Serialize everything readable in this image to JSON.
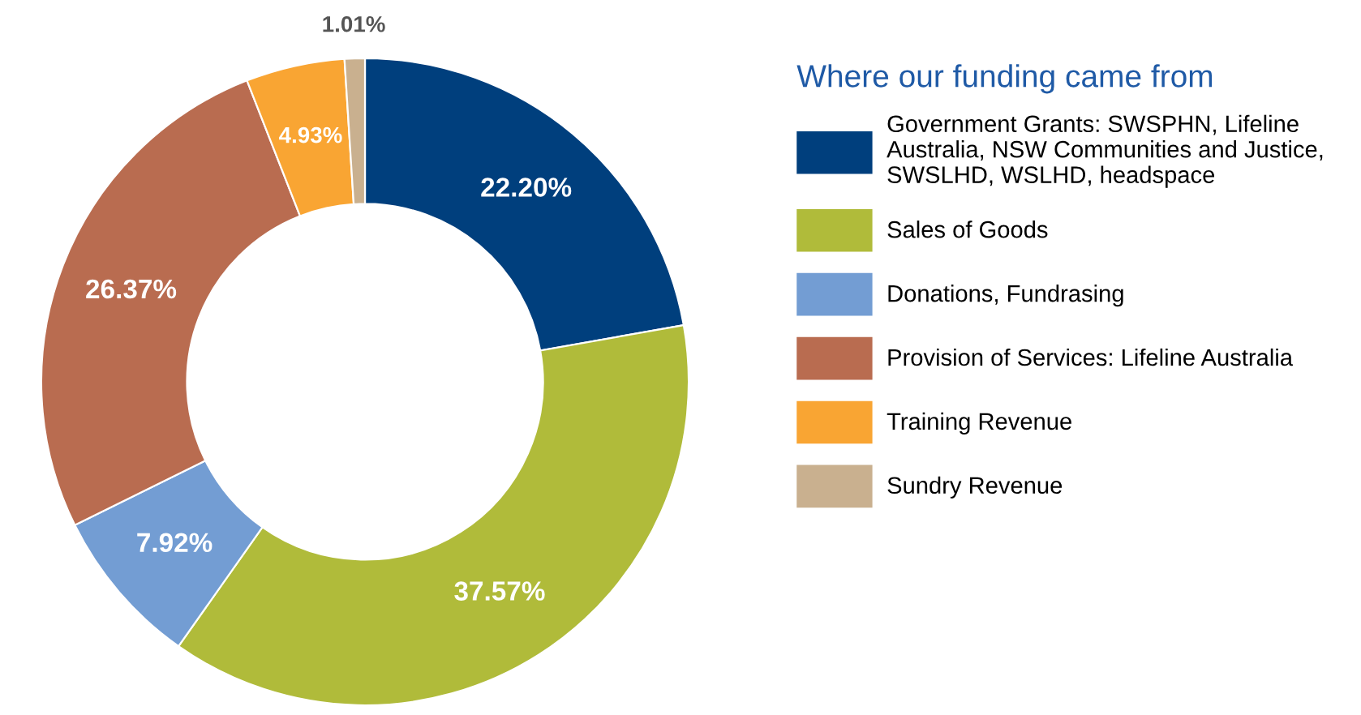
{
  "chart_data": {
    "type": "donut",
    "legend_title": "Where our funding came from",
    "legend": "right",
    "categories": [
      "Government Grants: SWSPHN, Lifeline Australia, NSW Communities and Justice, SWSLHD, WSLHD, headspace",
      "Sales of Goods",
      "Donations, Fundrasing",
      "Provision of Services: Lifeline Australia",
      "Training Revenue",
      "Sundry Revenue"
    ],
    "values": [
      22.2,
      37.57,
      7.92,
      26.37,
      4.93,
      1.01
    ],
    "value_labels": [
      "22.20%",
      "37.57%",
      "7.92%",
      "26.37%",
      "4.93%",
      "1.01%"
    ],
    "colors": [
      "#003f7d",
      "#b0bb3a",
      "#739dd3",
      "#b96c50",
      "#f9a533",
      "#c9b08f"
    ]
  }
}
